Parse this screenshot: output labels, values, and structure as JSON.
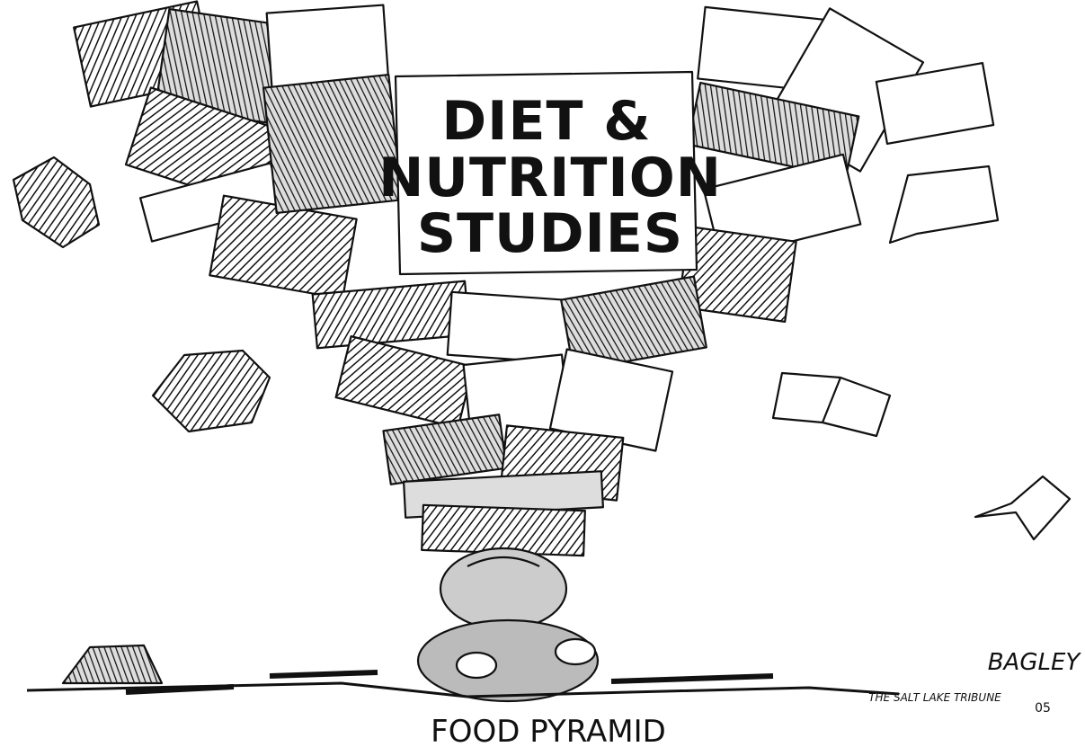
{
  "sign": {
    "lines": [
      "DIET &",
      "NUTRITION",
      "STUDIES"
    ]
  },
  "caption": "FOOD PYRAMID",
  "signature": {
    "artist": "BAGLEY",
    "publisher": "THE SALT LAKE TRIBUNE",
    "year": "05"
  }
}
